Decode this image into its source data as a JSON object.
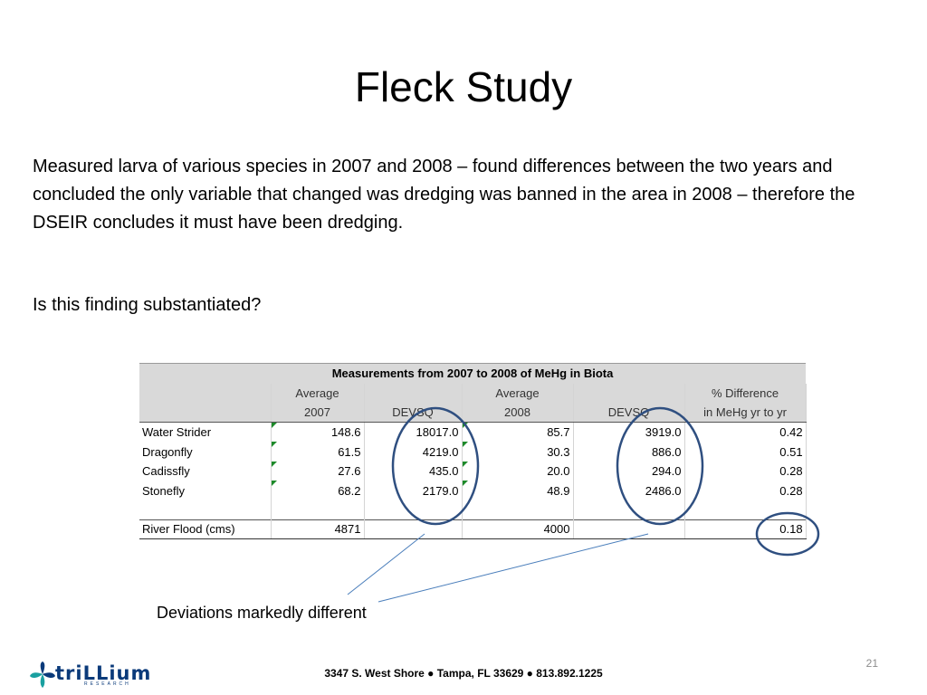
{
  "slide": {
    "title": "Fleck Study",
    "paragraph": "Measured larva of various species in 2007 and 2008 – found differences between the two years and concluded the only variable that changed was dredging was banned in the area in 2008 – therefore the DSEIR concludes it must have been dredging.",
    "question": "Is this finding substantiated?",
    "callout": "Deviations markedly different",
    "page_number": "21",
    "footer_address": "3347 S. West Shore ●  Tampa, FL  33629  ●  813.892.1225",
    "logo_text": "triLLium",
    "logo_subtext": "RESEARCH"
  },
  "table": {
    "caption": "Measurements from 2007 to 2008 of MeHg in Biota",
    "header_row1": [
      "",
      "Average",
      "",
      "Average",
      "",
      "% Difference"
    ],
    "header_row2": [
      "",
      "2007",
      "DEVSQ",
      "2008",
      "DEVSQ",
      "in MeHg yr to yr"
    ],
    "rows": [
      {
        "label": "Water Strider",
        "avg2007": "148.6",
        "devsq2007": "18017.0",
        "avg2008": "85.7",
        "devsq2008": "3919.0",
        "pct": "0.42"
      },
      {
        "label": "Dragonfly",
        "avg2007": "61.5",
        "devsq2007": "4219.0",
        "avg2008": "30.3",
        "devsq2008": "886.0",
        "pct": "0.51"
      },
      {
        "label": "Cadissfly",
        "avg2007": "27.6",
        "devsq2007": "435.0",
        "avg2008": "20.0",
        "devsq2008": "294.0",
        "pct": "0.28"
      },
      {
        "label": "Stonefly",
        "avg2007": "68.2",
        "devsq2007": "2179.0",
        "avg2008": "48.9",
        "devsq2008": "2486.0",
        "pct": "0.28"
      }
    ],
    "flood_row": {
      "label": "River Flood (cms)",
      "avg2007": "4871",
      "devsq2007": "",
      "avg2008": "4000",
      "devsq2008": "",
      "pct": "0.18"
    }
  },
  "colors": {
    "annotation_ellipse": "#2f4f80",
    "callout_line": "#4a7ebb",
    "header_fill": "#d9d9d9",
    "logo_blue": "#0a3a7a",
    "logo_teal": "#1aa0a0",
    "error_marker": "#1d8a2a"
  }
}
